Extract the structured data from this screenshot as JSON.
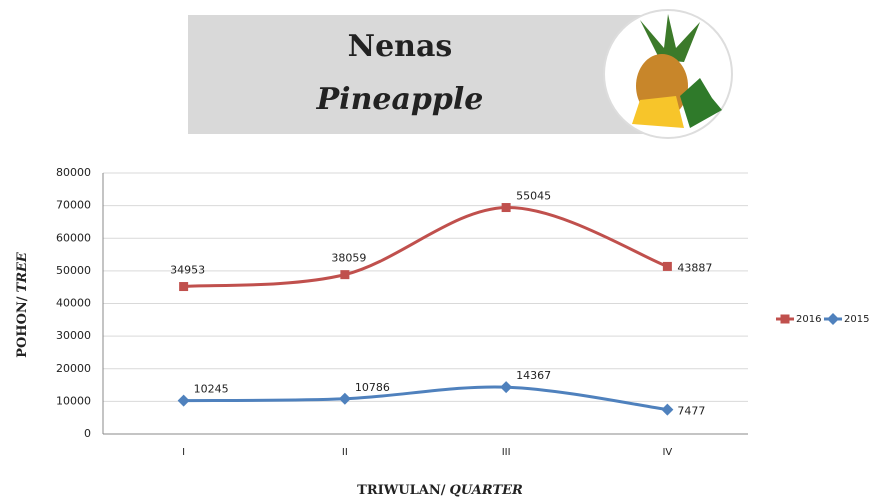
{
  "chart_data": {
    "type": "line",
    "stacked": true,
    "smooth": true,
    "title": "Nenas",
    "subtitle": "Pineapple",
    "ylabel": [
      "POHON/",
      "TREE"
    ],
    "xlabel": [
      "TRIWULAN/",
      "QUARTER"
    ],
    "categories": [
      "I",
      "II",
      "III",
      "IV"
    ],
    "series": [
      {
        "name": "2016",
        "color": "#c0504d",
        "marker": "square",
        "values": [
          34953,
          38059,
          55045,
          43887
        ]
      },
      {
        "name": "2015",
        "color": "#4f81bd",
        "marker": "diamond",
        "values": [
          10245,
          10786,
          14367,
          7477
        ]
      }
    ],
    "ylim": [
      0,
      80000
    ],
    "yticks": [
      0,
      10000,
      20000,
      30000,
      40000,
      50000,
      60000,
      70000,
      80000
    ],
    "grid": true,
    "legend": "right"
  }
}
